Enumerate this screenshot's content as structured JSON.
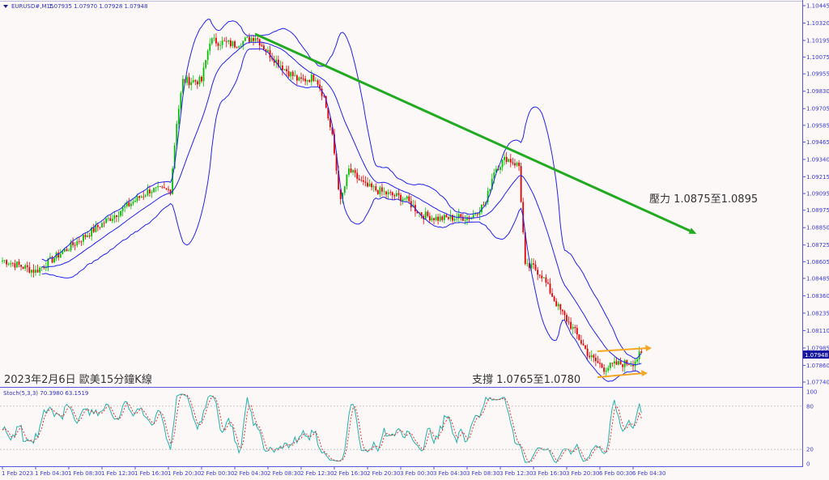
{
  "header": {
    "symbol": "EURUSD#,M15",
    "ohlc": "1.07935 1.07970 1.07928 1.07948"
  },
  "annotations": {
    "title": "2023年2月6日 歐美15分鐘K線",
    "resistance": "壓力 1.0875至1.0895",
    "support": "支撐 1.0765至1.0780"
  },
  "current_price": "1.07948",
  "colors": {
    "background": "#fdf8f8",
    "bull": "#00c000",
    "bear": "#e00000",
    "bands": "#2222ee",
    "trendline": "#22aa22",
    "channel_arrows": "#f5a623",
    "axis": "#5555dd",
    "price_tag": "#1515a0",
    "stoch_main": "#20b2aa",
    "stoch_signal": "#e03030"
  },
  "chart_data": [
    {
      "type": "candlestick",
      "symbol": "EURUSD#",
      "timeframe": "M15",
      "indicators": [
        "Bollinger Bands"
      ],
      "ylim": [
        1.0774,
        1.10445
      ],
      "y_ticks": [
        "1.10445",
        "1.10320",
        "1.10195",
        "1.10075",
        "1.09955",
        "1.09830",
        "1.09705",
        "1.09585",
        "1.09465",
        "1.09340",
        "1.09215",
        "1.09095",
        "1.08975",
        "1.08850",
        "1.08725",
        "1.08605",
        "1.08485",
        "1.08360",
        "1.08235",
        "1.08110",
        "1.07985",
        "1.07860",
        "1.07740"
      ],
      "x_ticks": [
        "1 Feb 2023",
        "1 Feb 04:30",
        "1 Feb 08:30",
        "1 Feb 12:30",
        "1 Feb 16:30",
        "1 Feb 20:30",
        "2 Feb 00:30",
        "2 Feb 04:30",
        "2 Feb 08:30",
        "2 Feb 12:30",
        "2 Feb 16:30",
        "2 Feb 20:30",
        "3 Feb 00:30",
        "3 Feb 04:30",
        "3 Feb 08:30",
        "3 Feb 12:30",
        "3 Feb 16:30",
        "3 Feb 20:30",
        "6 Feb 00:30",
        "6 Feb 04:30"
      ],
      "approx_close_path": [
        [
          "1 Feb 00:45",
          1.08613
        ],
        [
          "1 Feb 04:30",
          1.08537
        ],
        [
          "1 Feb 10:00",
          1.0877
        ],
        [
          "1 Feb 14:45",
          1.08973
        ],
        [
          "1 Feb 18:15",
          1.09119
        ],
        [
          "1 Feb 20:45",
          1.09119
        ],
        [
          "1 Feb 21:30",
          1.09613
        ],
        [
          "1 Feb 22:15",
          1.09904
        ],
        [
          "2 Feb 00:30",
          1.09904
        ],
        [
          "2 Feb 01:30",
          1.10195
        ],
        [
          "2 Feb 04:30",
          1.10166
        ],
        [
          "2 Feb 07:00",
          1.10224
        ],
        [
          "2 Feb 08:30",
          1.10108
        ],
        [
          "2 Feb 10:30",
          1.09991
        ],
        [
          "2 Feb 12:15",
          1.09904
        ],
        [
          "2 Feb 14:15",
          1.09933
        ],
        [
          "2 Feb 15:15",
          1.09788
        ],
        [
          "2 Feb 16:15",
          1.09497
        ],
        [
          "2 Feb 17:15",
          1.09031
        ],
        [
          "2 Feb 18:15",
          1.09264
        ],
        [
          "2 Feb 20:15",
          1.09148
        ],
        [
          "2 Feb 23:00",
          1.0909
        ],
        [
          "3 Feb 01:00",
          1.0906
        ],
        [
          "3 Feb 03:00",
          1.08944
        ],
        [
          "3 Feb 05:00",
          1.08915
        ],
        [
          "3 Feb 09:00",
          1.08927
        ],
        [
          "3 Feb 10:45",
          1.09031
        ],
        [
          "3 Feb 11:45",
          1.09264
        ],
        [
          "3 Feb 13:15",
          1.09351
        ],
        [
          "3 Feb 14:45",
          1.09293
        ],
        [
          "3 Feb 15:30",
          1.08566
        ],
        [
          "3 Feb 16:30",
          1.08566
        ],
        [
          "3 Feb 17:30",
          1.08508
        ],
        [
          "3 Feb 19:30",
          1.08275
        ],
        [
          "3 Feb 21:30",
          1.08101
        ],
        [
          "3 Feb 23:15",
          1.07926
        ],
        [
          "6 Feb 01:00",
          1.07839
        ],
        [
          "6 Feb 02:30",
          1.07868
        ],
        [
          "6 Feb 04:30",
          1.0788
        ],
        [
          "6 Feb 05:30",
          1.07948
        ]
      ],
      "trendline": {
        "from": [
          "2 Feb 07:00",
          1.1024
        ],
        "to_price_at_right": 1.0882
      }
    },
    {
      "type": "line",
      "indicator": "Stoch(5,3,3)",
      "label": "Stoch(5,3,3) 70.3980 63.1519",
      "main_value": 70.398,
      "signal_value": 63.1519,
      "ylim": [
        0,
        100
      ],
      "y_ticks": [
        "100",
        "80",
        "20",
        "0"
      ],
      "levels": [
        80,
        20
      ]
    }
  ]
}
